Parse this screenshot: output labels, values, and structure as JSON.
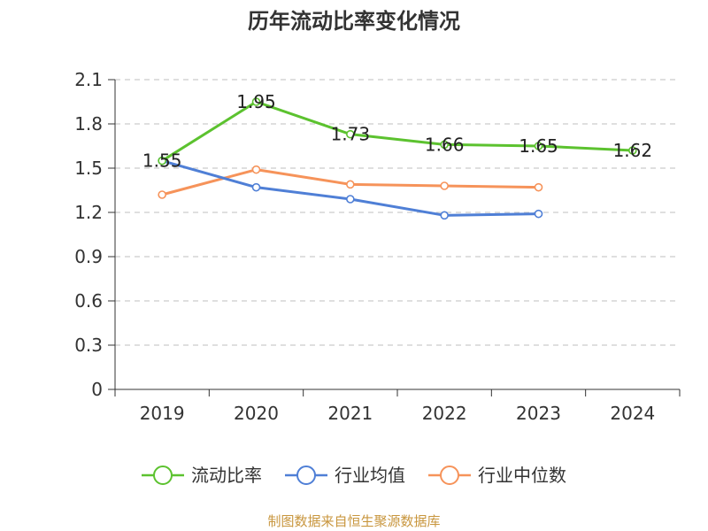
{
  "chart_data": {
    "type": "line",
    "title": "历年流动比率变化情况",
    "categories": [
      "2019",
      "2020",
      "2021",
      "2022",
      "2023",
      "2024"
    ],
    "ylim": [
      0,
      2.1
    ],
    "yticks": [
      "0",
      "0.3",
      "0.6",
      "0.9",
      "1.2",
      "1.5",
      "1.8",
      "2.1"
    ],
    "grid": true,
    "legend_position": "bottom",
    "series": [
      {
        "name": "流动比率",
        "color": "#5cc22f",
        "values": [
          1.55,
          1.95,
          1.73,
          1.66,
          1.65,
          1.62
        ],
        "labels": [
          "1.55",
          "1.95",
          "1.73",
          "1.66",
          "1.65",
          "1.62"
        ]
      },
      {
        "name": "行业均值",
        "color": "#4f7fd6",
        "values": [
          1.55,
          1.37,
          1.29,
          1.18,
          1.19,
          null
        ]
      },
      {
        "name": "行业中位数",
        "color": "#f6935a",
        "values": [
          1.32,
          1.49,
          1.39,
          1.38,
          1.37,
          null
        ]
      }
    ]
  },
  "source": "制图数据来自恒生聚源数据库"
}
